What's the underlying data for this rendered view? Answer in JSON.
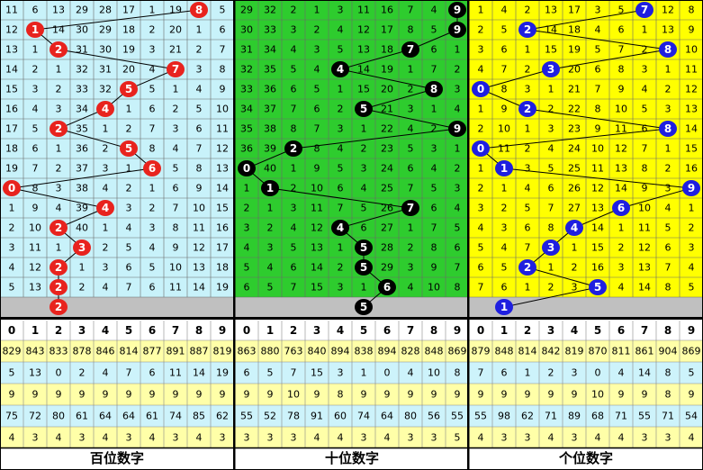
{
  "panels": [
    {
      "label": "百位数字",
      "ball": "#e8231e",
      "bg": "#c8f2fa",
      "digits": [
        0,
        1,
        2,
        3,
        4,
        5,
        6,
        7,
        8,
        9
      ],
      "hits": [
        8,
        1,
        2,
        7,
        5,
        4,
        2,
        5,
        6,
        0,
        4,
        2,
        3,
        2,
        2
      ],
      "rows": [
        [
          11,
          6,
          13,
          29,
          28,
          17,
          1,
          19,
          8,
          5
        ],
        [
          12,
          1,
          14,
          30,
          29,
          18,
          2,
          20,
          1,
          6
        ],
        [
          13,
          1,
          2,
          31,
          30,
          19,
          3,
          21,
          2,
          7
        ],
        [
          14,
          2,
          1,
          32,
          31,
          20,
          4,
          7,
          3,
          8
        ],
        [
          15,
          3,
          2,
          33,
          32,
          5,
          5,
          1,
          4,
          9
        ],
        [
          16,
          4,
          3,
          34,
          4,
          1,
          6,
          2,
          5,
          10
        ],
        [
          17,
          5,
          2,
          35,
          1,
          2,
          7,
          3,
          6,
          11
        ],
        [
          18,
          6,
          1,
          36,
          2,
          5,
          8,
          4,
          7,
          12
        ],
        [
          19,
          7,
          2,
          37,
          3,
          1,
          6,
          5,
          8,
          13
        ],
        [
          0,
          8,
          3,
          38,
          4,
          2,
          1,
          6,
          9,
          14
        ],
        [
          1,
          9,
          4,
          39,
          4,
          3,
          2,
          7,
          10,
          15
        ],
        [
          2,
          10,
          2,
          40,
          1,
          4,
          3,
          8,
          11,
          16
        ],
        [
          3,
          11,
          1,
          3,
          2,
          5,
          4,
          9,
          12,
          17
        ],
        [
          4,
          12,
          2,
          1,
          3,
          6,
          5,
          10,
          13,
          18
        ],
        [
          5,
          13,
          2,
          2,
          4,
          7,
          6,
          11,
          14,
          19
        ]
      ],
      "next": 2,
      "stats": [
        [
          829,
          843,
          833,
          878,
          846,
          814,
          877,
          891,
          887,
          819
        ],
        [
          5,
          13,
          0,
          2,
          4,
          7,
          6,
          11,
          14,
          19
        ],
        [
          9,
          9,
          9,
          9,
          9,
          9,
          9,
          9,
          9,
          9
        ],
        [
          75,
          72,
          80,
          61,
          64,
          64,
          61,
          74,
          85,
          62
        ],
        [
          4,
          3,
          4,
          3,
          4,
          3,
          4,
          3,
          4,
          3
        ]
      ]
    },
    {
      "label": "十位数字",
      "ball": "#000000",
      "bg": "#2ecc2e",
      "digits": [
        0,
        1,
        2,
        3,
        4,
        5,
        6,
        7,
        8,
        9
      ],
      "hits": [
        9,
        9,
        7,
        4,
        8,
        5,
        9,
        2,
        0,
        1,
        7,
        4,
        5,
        5,
        6
      ],
      "rows": [
        [
          29,
          32,
          2,
          1,
          3,
          11,
          16,
          7,
          4,
          9
        ],
        [
          30,
          33,
          3,
          2,
          4,
          12,
          17,
          8,
          5,
          9
        ],
        [
          31,
          34,
          4,
          3,
          5,
          13,
          18,
          7,
          6,
          1
        ],
        [
          32,
          35,
          5,
          4,
          4,
          14,
          19,
          1,
          7,
          2
        ],
        [
          33,
          36,
          6,
          5,
          1,
          15,
          20,
          2,
          8,
          3
        ],
        [
          34,
          37,
          7,
          6,
          2,
          5,
          21,
          3,
          1,
          4
        ],
        [
          35,
          38,
          8,
          7,
          3,
          1,
          22,
          4,
          2,
          9
        ],
        [
          36,
          39,
          2,
          8,
          4,
          2,
          23,
          5,
          3,
          1
        ],
        [
          0,
          40,
          1,
          9,
          5,
          3,
          24,
          6,
          4,
          2
        ],
        [
          1,
          1,
          2,
          10,
          6,
          4,
          25,
          7,
          5,
          3
        ],
        [
          2,
          1,
          3,
          11,
          7,
          5,
          26,
          7,
          6,
          4
        ],
        [
          3,
          2,
          4,
          12,
          4,
          6,
          27,
          1,
          7,
          5
        ],
        [
          4,
          3,
          5,
          13,
          1,
          5,
          28,
          2,
          8,
          6
        ],
        [
          5,
          4,
          6,
          14,
          2,
          5,
          29,
          3,
          9,
          7
        ],
        [
          6,
          5,
          7,
          15,
          3,
          1,
          6,
          4,
          10,
          8
        ]
      ],
      "next": 5,
      "stats": [
        [
          863,
          880,
          763,
          840,
          894,
          838,
          894,
          828,
          848,
          869
        ],
        [
          6,
          5,
          7,
          15,
          3,
          1,
          0,
          4,
          10,
          8
        ],
        [
          9,
          9,
          10,
          9,
          8,
          9,
          9,
          9,
          9,
          9
        ],
        [
          55,
          52,
          78,
          91,
          60,
          74,
          64,
          80,
          56,
          55
        ],
        [
          3,
          3,
          3,
          4,
          4,
          3,
          4,
          3,
          3,
          5
        ]
      ]
    },
    {
      "label": "个位数字",
      "ball": "#1f1fe0",
      "bg": "#ffff00",
      "digits": [
        0,
        1,
        2,
        3,
        4,
        5,
        6,
        7,
        8,
        9
      ],
      "hits": [
        7,
        2,
        8,
        3,
        0,
        2,
        8,
        0,
        1,
        9,
        6,
        4,
        3,
        2,
        5
      ],
      "rows": [
        [
          1,
          4,
          2,
          13,
          17,
          3,
          5,
          7,
          12,
          8
        ],
        [
          2,
          5,
          2,
          14,
          18,
          4,
          6,
          1,
          13,
          9
        ],
        [
          3,
          6,
          1,
          15,
          19,
          5,
          7,
          2,
          8,
          10
        ],
        [
          4,
          7,
          2,
          3,
          20,
          6,
          8,
          3,
          1,
          11
        ],
        [
          0,
          8,
          3,
          1,
          21,
          7,
          9,
          4,
          2,
          12
        ],
        [
          1,
          9,
          2,
          2,
          22,
          8,
          10,
          5,
          3,
          13
        ],
        [
          2,
          10,
          1,
          3,
          23,
          9,
          11,
          6,
          8,
          14
        ],
        [
          0,
          11,
          2,
          4,
          24,
          10,
          12,
          7,
          1,
          15
        ],
        [
          1,
          1,
          3,
          5,
          25,
          11,
          13,
          8,
          2,
          16
        ],
        [
          2,
          1,
          4,
          6,
          26,
          12,
          14,
          9,
          3,
          9
        ],
        [
          3,
          2,
          5,
          7,
          27,
          13,
          6,
          10,
          4,
          1
        ],
        [
          4,
          3,
          6,
          8,
          4,
          14,
          1,
          11,
          5,
          2
        ],
        [
          5,
          4,
          7,
          3,
          1,
          15,
          2,
          12,
          6,
          3
        ],
        [
          6,
          5,
          2,
          1,
          2,
          16,
          3,
          13,
          7,
          4
        ],
        [
          7,
          6,
          1,
          2,
          3,
          5,
          4,
          14,
          8,
          5
        ]
      ],
      "next": 1,
      "stats": [
        [
          879,
          848,
          814,
          842,
          819,
          870,
          811,
          861,
          904,
          869
        ],
        [
          7,
          6,
          1,
          2,
          3,
          0,
          4,
          14,
          8,
          5
        ],
        [
          9,
          9,
          9,
          9,
          9,
          10,
          9,
          9,
          8,
          9
        ],
        [
          55,
          98,
          62,
          71,
          89,
          68,
          71,
          55,
          71,
          54
        ],
        [
          4,
          3,
          3,
          4,
          3,
          4,
          4,
          3,
          3,
          4
        ]
      ]
    }
  ]
}
